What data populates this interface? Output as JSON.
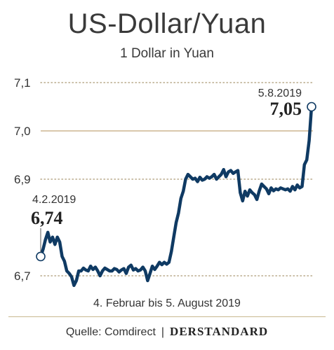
{
  "title": "US-Dollar/Yuan",
  "subtitle": "1 Dollar in Yuan",
  "footer": {
    "source": "Quelle: Comdirect",
    "separator": "|",
    "brand": "DERSTANDARD"
  },
  "colors": {
    "line": "#0f3a63",
    "grid": "#b8a98a",
    "ref_line": "#c2a87a",
    "marker_fill": "#ffffff"
  },
  "chart_data": {
    "type": "line",
    "title": "US-Dollar/Yuan",
    "subtitle": "1 Dollar in Yuan",
    "xlabel": "4. Februar bis 5. August 2019",
    "ylabel": "",
    "ylim": [
      6.685,
      7.115
    ],
    "yticks": [
      {
        "value": 7.1,
        "label": "7,1",
        "style": "dotted"
      },
      {
        "value": 7.0,
        "label": "7,0",
        "style": "solid"
      },
      {
        "value": 6.9,
        "label": "6,9",
        "style": "dotted"
      },
      {
        "value": 6.7,
        "label": "6,7",
        "style": "dotted"
      }
    ],
    "series": [
      {
        "values": [
          6.74,
          6.755,
          6.775,
          6.79,
          6.77,
          6.78,
          6.765,
          6.78,
          6.77,
          6.74,
          6.73,
          6.71,
          6.705,
          6.698,
          6.68,
          6.69,
          6.71,
          6.71,
          6.716,
          6.712,
          6.71,
          6.72,
          6.713,
          6.718,
          6.71,
          6.7,
          6.71,
          6.716,
          6.713,
          6.71,
          6.71,
          6.715,
          6.713,
          6.708,
          6.712,
          6.715,
          6.705,
          6.718,
          6.722,
          6.712,
          6.715,
          6.71,
          6.712,
          6.718,
          6.71,
          6.69,
          6.705,
          6.72,
          6.713,
          6.72,
          6.728,
          6.723,
          6.728,
          6.724,
          6.728,
          6.75,
          6.78,
          6.81,
          6.83,
          6.86,
          6.875,
          6.9,
          6.91,
          6.905,
          6.9,
          6.902,
          6.895,
          6.904,
          6.898,
          6.9,
          6.905,
          6.902,
          6.905,
          6.91,
          6.9,
          6.905,
          6.91,
          6.92,
          6.905,
          6.915,
          6.918,
          6.912,
          6.915,
          6.918,
          6.872,
          6.855,
          6.875,
          6.865,
          6.878,
          6.872,
          6.868,
          6.858,
          6.876,
          6.89,
          6.885,
          6.88,
          6.87,
          6.882,
          6.876,
          6.88,
          6.878,
          6.882,
          6.88,
          6.878,
          6.88,
          6.875,
          6.885,
          6.878,
          6.888,
          6.882,
          6.885,
          6.93,
          6.94,
          6.98,
          7.05
        ]
      }
    ],
    "annotations": [
      {
        "date": "4.2.2019",
        "value": "6,74"
      },
      {
        "date": "5.8.2019",
        "value": "7,05"
      }
    ],
    "grid": true,
    "legend": "none"
  }
}
